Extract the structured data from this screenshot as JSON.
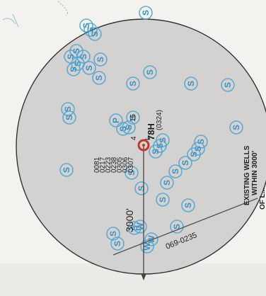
{
  "map": {
    "well_name": "78H",
    "well_prefix": "L",
    "well_number": "(0324)",
    "well_id_list": [
      "0081",
      "0217",
      "0223",
      "0238",
      "0305",
      "0306",
      "0307"
    ],
    "lease_extra_1": "4",
    "lease_extra_2": "15",
    "radius_label": "3000'",
    "line_label": "069-0235",
    "legend_line1": "EXISTING WELLS",
    "legend_line2": "WITHIN 3000'",
    "legend_line3": "OF L...",
    "well_symbol_s": "S",
    "well_symbol_w": "W",
    "well_symbol_p": "P",
    "colors": {
      "well_symbol": "#4aa3d4",
      "target_marker": "#c0392b",
      "radius_line": "#444444",
      "background": "#f3f2ee",
      "circle_fill": "#d2d1cf"
    }
  }
}
